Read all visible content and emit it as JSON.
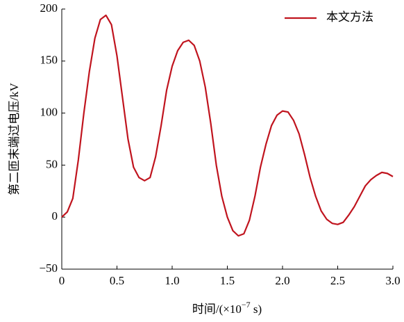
{
  "chart_data": {
    "type": "line",
    "ylabel": "第二匝末端过电压/kV",
    "xlabel_parts": [
      "时间/(×10",
      "−7",
      " s)"
    ],
    "x": [
      0,
      0.05,
      0.1,
      0.15,
      0.2,
      0.25,
      0.3,
      0.35,
      0.4,
      0.45,
      0.5,
      0.55,
      0.6,
      0.65,
      0.7,
      0.75,
      0.8,
      0.85,
      0.9,
      0.95,
      1.0,
      1.05,
      1.1,
      1.15,
      1.2,
      1.25,
      1.3,
      1.35,
      1.4,
      1.45,
      1.5,
      1.55,
      1.6,
      1.65,
      1.7,
      1.75,
      1.8,
      1.85,
      1.9,
      1.95,
      2.0,
      2.05,
      2.1,
      2.15,
      2.2,
      2.25,
      2.3,
      2.35,
      2.4,
      2.45,
      2.5,
      2.55,
      2.6,
      2.65,
      2.7,
      2.75,
      2.8,
      2.85,
      2.9,
      2.95,
      3.0
    ],
    "series": [
      {
        "name": "本文方法",
        "color": "#c0141e",
        "values": [
          0,
          5,
          18,
          55,
          100,
          140,
          172,
          190,
          194,
          185,
          155,
          115,
          75,
          48,
          38,
          35,
          38,
          58,
          88,
          122,
          145,
          160,
          168,
          170,
          165,
          150,
          125,
          90,
          50,
          20,
          0,
          -13,
          -18,
          -16,
          -3,
          20,
          48,
          70,
          88,
          98,
          102,
          101,
          93,
          80,
          60,
          38,
          20,
          6,
          -2,
          -6,
          -7,
          -5,
          2,
          10,
          20,
          30,
          36,
          40,
          43,
          42,
          39
        ]
      }
    ],
    "xlim": [
      0,
      3
    ],
    "xticks": [
      0,
      0.5,
      {
        "value": 1,
        "label": "1.0"
      },
      1.5,
      {
        "value": 2,
        "label": "2.0"
      },
      2.5,
      {
        "value": 3,
        "label": "3.0"
      }
    ],
    "ylim": [
      -50,
      200
    ],
    "yticks": [
      {
        "value": -50,
        "label": "−50"
      },
      0,
      50,
      100,
      150,
      200
    ],
    "legend": "upper right"
  }
}
